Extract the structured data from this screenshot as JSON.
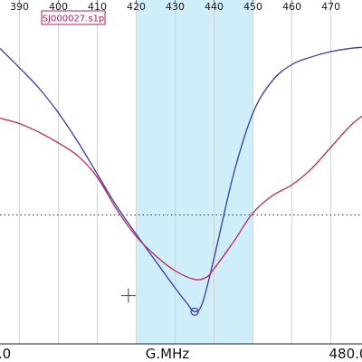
{
  "chart_data": {
    "type": "line",
    "file_tag": "SJ000027.s1p",
    "xlim": [
      385,
      478
    ],
    "ylim": [
      -30,
      2
    ],
    "x_ticks": [
      390,
      400,
      410,
      420,
      430,
      440,
      450,
      460,
      470
    ],
    "x_tick_labels": [
      "390",
      "400",
      "410",
      "420",
      "430",
      "440",
      "450",
      "460",
      "470"
    ],
    "x_axis_start_label": ".0",
    "x_axis_unit_label": "G.MHz",
    "x_axis_end_label": "480.0",
    "highlight_band": [
      420,
      450
    ],
    "reference_level": -18,
    "marker": {
      "x": 435,
      "y": -27
    },
    "cursor": {
      "x": 418,
      "y": -25.5
    },
    "series": [
      {
        "color": "#3a3aa8",
        "x": [
          385,
          390,
          395,
          400,
          405,
          410,
          415,
          420,
          425,
          430,
          433,
          435,
          437,
          440,
          445,
          450,
          455,
          460,
          465,
          470,
          475,
          478
        ],
        "y": [
          -2.5,
          -4.3,
          -6.2,
          -8.5,
          -11.2,
          -14.2,
          -17.2,
          -19.8,
          -22.3,
          -24.8,
          -26.2,
          -27,
          -26.2,
          -22,
          -14.2,
          -8.5,
          -5.5,
          -4,
          -3.3,
          -2.8,
          -2.5,
          -2.4
        ]
      },
      {
        "color": "#b8284c",
        "x": [
          385,
          390,
          395,
          400,
          405,
          410,
          415,
          420,
          425,
          430,
          435,
          438,
          440,
          445,
          450,
          455,
          460,
          465,
          470,
          475,
          478
        ],
        "y": [
          -9,
          -9.5,
          -10.3,
          -11.3,
          -12.5,
          -14.5,
          -17.5,
          -20,
          -21.8,
          -23.2,
          -24,
          -23.8,
          -23,
          -20.5,
          -17.8,
          -16.2,
          -15.2,
          -13.7,
          -11.7,
          -9.7,
          -8.8
        ]
      }
    ]
  }
}
